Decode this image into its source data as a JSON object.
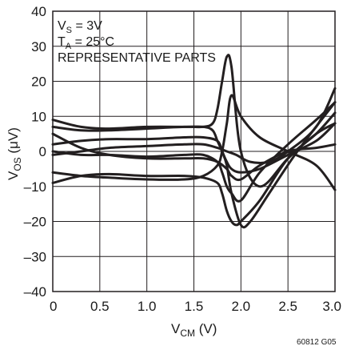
{
  "chart_data": {
    "type": "line",
    "title": "",
    "xlabel": {
      "main": "V",
      "sub": "CM",
      "unit": " (V)"
    },
    "ylabel": {
      "main": "V",
      "sub": "OS",
      "unit": " (μV)"
    },
    "xlim": [
      0,
      3.0
    ],
    "ylim": [
      -40,
      40
    ],
    "x_ticks": [
      0,
      0.5,
      1.0,
      1.5,
      2.0,
      2.5,
      3.0
    ],
    "x_tick_labels": [
      "0",
      "0.5",
      "1.0",
      "1.5",
      "2.0",
      "2.5",
      "3.0"
    ],
    "y_ticks": [
      -40,
      -30,
      -20,
      -10,
      0,
      10,
      20,
      30,
      40
    ],
    "y_tick_labels": [
      "–40",
      "–30",
      "–20",
      "–10",
      "0",
      "10",
      "20",
      "30",
      "40"
    ],
    "grid": true,
    "line_color": "#231f20",
    "annotations": [
      {
        "main": "V",
        "sub": "S",
        "rest": " = 3V"
      },
      {
        "main": "T",
        "sub": "A",
        "rest": " = 25°C"
      },
      {
        "main": "REPRESENTATIVE PARTS",
        "sub": "",
        "rest": ""
      }
    ],
    "figure_code": "60812 G05",
    "series": [
      {
        "x": [
          0,
          0.3,
          0.6,
          1.0,
          1.4,
          1.6,
          1.7,
          1.75,
          1.8,
          1.85,
          1.9,
          2.0,
          2.2,
          2.5,
          2.8,
          3.0
        ],
        "y": [
          7,
          6,
          6,
          6.5,
          7,
          7,
          8,
          12,
          20,
          27,
          24,
          0,
          -10,
          -2,
          5,
          8
        ]
      },
      {
        "x": [
          0,
          0.3,
          0.6,
          1.0,
          1.4,
          1.6,
          1.7,
          1.75,
          1.8,
          1.85,
          1.9,
          2.0,
          2.1,
          2.3,
          2.6,
          3.0
        ],
        "y": [
          9,
          7,
          6.5,
          7,
          7,
          7,
          6,
          3,
          0,
          -4,
          -12,
          -21,
          -20,
          -12,
          0,
          14
        ]
      },
      {
        "x": [
          0,
          0.3,
          0.6,
          1.0,
          1.4,
          1.6,
          1.75,
          1.8,
          1.85,
          1.9,
          1.95,
          2.0,
          2.2,
          2.5,
          2.8,
          3.0
        ],
        "y": [
          -9,
          -7,
          -6.5,
          -7,
          -7,
          -7.5,
          -9,
          -12,
          -17,
          -20,
          -21,
          -20,
          -14,
          -2,
          5,
          11
        ]
      },
      {
        "x": [
          0,
          0.3,
          0.6,
          1.0,
          1.4,
          1.6,
          1.75,
          1.8,
          1.85,
          1.9,
          2.0,
          2.2,
          2.5,
          2.8,
          3.0
        ],
        "y": [
          -6,
          -7,
          -7.5,
          -8,
          -8,
          -7,
          -4,
          0,
          8,
          16,
          10,
          4,
          0,
          -4,
          -11
        ]
      },
      {
        "x": [
          0,
          0.3,
          0.6,
          1.0,
          1.4,
          1.6,
          1.75,
          1.8,
          1.85,
          1.9,
          2.0,
          2.2,
          2.5,
          2.8,
          3.0
        ],
        "y": [
          2,
          3,
          3.5,
          3.5,
          4,
          4,
          3,
          0,
          -3,
          -5,
          -6,
          -5,
          -1,
          3,
          8
        ]
      },
      {
        "x": [
          0,
          0.3,
          0.6,
          1.0,
          1.4,
          1.6,
          1.75,
          1.8,
          1.85,
          1.9,
          2.0,
          2.2,
          2.5,
          2.8,
          3.0
        ],
        "y": [
          0,
          -1,
          -1,
          -1.5,
          -1,
          -1,
          -3,
          -6,
          -10,
          -12,
          -14,
          -6,
          2,
          9,
          14
        ]
      },
      {
        "x": [
          0,
          0.3,
          0.6,
          1.0,
          1.4,
          1.6,
          1.75,
          1.85,
          1.95,
          2.1,
          2.3,
          2.5,
          2.8,
          3.0
        ],
        "y": [
          -1,
          0,
          1,
          1.5,
          2,
          2,
          1,
          0,
          -1,
          -3,
          -3,
          0,
          7,
          18
        ]
      },
      {
        "x": [
          0,
          0.3,
          0.6,
          1.0,
          1.4,
          1.6,
          1.75,
          1.85,
          1.9,
          2.0,
          2.2,
          2.5,
          2.8,
          3.0
        ],
        "y": [
          5,
          1,
          -1,
          -2,
          -2,
          -2,
          -3,
          -5,
          -7,
          -8,
          -4,
          0,
          1,
          2
        ]
      }
    ]
  }
}
